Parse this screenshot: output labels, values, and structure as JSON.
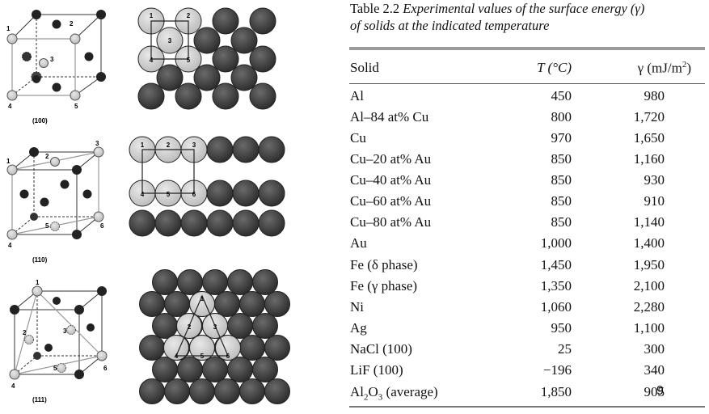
{
  "figures": {
    "cube_labels": [
      "(100)",
      "(110)",
      "(111)"
    ],
    "num_labels": [
      "1",
      "2",
      "3",
      "4",
      "5",
      "6"
    ]
  },
  "table": {
    "caption_number": "Table 2.2",
    "caption_text": "Experimental values of the surface energy (γ) of solids at the indicated temperature",
    "caption_line1": "Experimental values of the surface energy (γ)",
    "caption_line2": "of solids at the indicated temperature",
    "headers": {
      "solid": "Solid",
      "t": "T (°C)",
      "gamma_prefix": "γ (mJ/m",
      "gamma_sup": "2",
      "gamma_suffix": ")"
    },
    "rows": [
      {
        "solid": "Al",
        "t": "450",
        "g": "980"
      },
      {
        "solid": "Al–84 at% Cu",
        "t": "800",
        "g": "1,720"
      },
      {
        "solid": "Cu",
        "t": "970",
        "g": "1,650"
      },
      {
        "solid": "Cu–20 at% Au",
        "t": "850",
        "g": "1,160"
      },
      {
        "solid": "Cu–40 at% Au",
        "t": "850",
        "g": "930"
      },
      {
        "solid": "Cu–60 at% Au",
        "t": "850",
        "g": "910"
      },
      {
        "solid": "Cu–80 at% Au",
        "t": "850",
        "g": "1,140"
      },
      {
        "solid": "Au",
        "t": "1,000",
        "g": "1,400"
      },
      {
        "solid": "Fe (δ phase)",
        "t": "1,450",
        "g": "1,950"
      },
      {
        "solid": "Fe (γ phase)",
        "t": "1,350",
        "g": "2,100"
      },
      {
        "solid": "Ni",
        "t": "1,060",
        "g": "2,280"
      },
      {
        "solid": "Ag",
        "t": "950",
        "g": "1,100"
      },
      {
        "solid": "NaCl (100)",
        "t": "25",
        "g": "300"
      },
      {
        "solid": "LiF (100)",
        "t": "−196",
        "g": "340"
      },
      {
        "solid": "Al2O3 (average)",
        "t": "1,850",
        "g": "905"
      }
    ],
    "al2o3": {
      "base": "Al",
      "sub1": "2",
      "mid": "O",
      "sub2": "3",
      "suffix": " (average)"
    },
    "page_number": "9"
  }
}
